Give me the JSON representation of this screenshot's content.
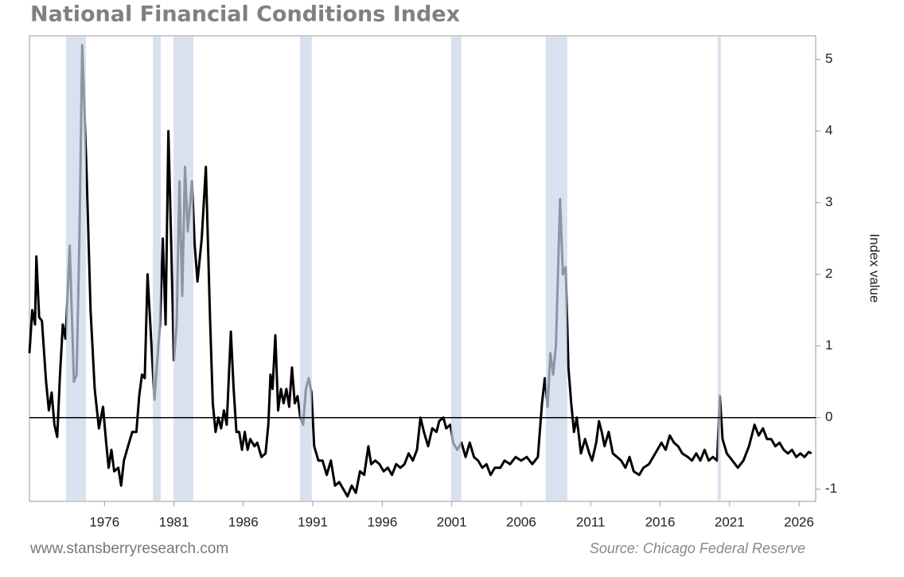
{
  "chart_data": {
    "type": "line",
    "title": "National Financial Conditions Index",
    "y_label": "Index value",
    "watermark": "www.stansberryresearch.com",
    "source": "Source: Chicago Federal Reserve",
    "color": "#000000",
    "shade_color": "#c9d4e8",
    "hline": 0,
    "xlim": [
      1970.6,
      2027.2
    ],
    "xticks": [
      1976,
      1981,
      1986,
      1991,
      1996,
      2001,
      2006,
      2011,
      2016,
      2021,
      2026
    ],
    "ylim": [
      -1.17,
      5.33
    ],
    "yticks": [
      -1,
      0,
      1,
      2,
      3,
      4,
      5
    ],
    "shaded_regions": [
      [
        1973.23,
        1974.67
      ],
      [
        1979.48,
        1980.05
      ],
      [
        1980.97,
        1982.4
      ],
      [
        1990.07,
        1990.93
      ],
      [
        2000.95,
        2001.7
      ],
      [
        2007.77,
        2009.32
      ],
      [
        2020.14,
        2020.37
      ]
    ],
    "x": [
      1970.6,
      1970.8,
      1971.0,
      1971.1,
      1971.3,
      1971.5,
      1971.8,
      1972.0,
      1972.2,
      1972.4,
      1972.6,
      1972.8,
      1973.0,
      1973.2,
      1973.5,
      1973.8,
      1974.0,
      1974.2,
      1974.4,
      1974.7,
      1975.0,
      1975.3,
      1975.6,
      1975.9,
      1976.1,
      1976.3,
      1976.5,
      1976.7,
      1977.0,
      1977.2,
      1977.4,
      1977.7,
      1978.0,
      1978.3,
      1978.5,
      1978.7,
      1978.9,
      1979.1,
      1979.3,
      1979.6,
      1979.8,
      1980.0,
      1980.2,
      1980.4,
      1980.6,
      1980.8,
      1981.0,
      1981.2,
      1981.4,
      1981.6,
      1981.8,
      1982.0,
      1982.3,
      1982.5,
      1982.7,
      1983.0,
      1983.3,
      1983.6,
      1983.8,
      1984.0,
      1984.2,
      1984.4,
      1984.6,
      1984.8,
      1985.1,
      1985.3,
      1985.5,
      1985.7,
      1985.9,
      1986.1,
      1986.3,
      1986.5,
      1986.8,
      1987.0,
      1987.3,
      1987.6,
      1987.8,
      1987.95,
      1988.1,
      1988.3,
      1988.5,
      1988.7,
      1988.9,
      1989.1,
      1989.3,
      1989.5,
      1989.7,
      1989.9,
      1990.1,
      1990.3,
      1990.5,
      1990.7,
      1990.9,
      1991.1,
      1991.4,
      1991.7,
      1992.0,
      1992.3,
      1992.6,
      1992.9,
      1993.2,
      1993.5,
      1993.8,
      1994.1,
      1994.4,
      1994.7,
      1995.0,
      1995.2,
      1995.5,
      1995.8,
      1996.1,
      1996.4,
      1996.7,
      1997.0,
      1997.3,
      1997.6,
      1997.9,
      1998.2,
      1998.5,
      1998.75,
      1999.0,
      1999.3,
      1999.6,
      1999.9,
      2000.1,
      2000.4,
      2000.6,
      2000.9,
      2001.1,
      2001.4,
      2001.7,
      2002.0,
      2002.3,
      2002.6,
      2002.9,
      2003.2,
      2003.5,
      2003.8,
      2004.1,
      2004.5,
      2004.8,
      2005.2,
      2005.6,
      2006.0,
      2006.4,
      2006.8,
      2007.2,
      2007.5,
      2007.7,
      2007.9,
      2008.1,
      2008.3,
      2008.5,
      2008.8,
      2009.0,
      2009.2,
      2009.4,
      2009.6,
      2009.8,
      2010.0,
      2010.3,
      2010.6,
      2010.9,
      2011.1,
      2011.4,
      2011.6,
      2011.8,
      2012.0,
      2012.3,
      2012.6,
      2012.9,
      2013.2,
      2013.5,
      2013.8,
      2014.1,
      2014.5,
      2014.8,
      2015.2,
      2015.5,
      2015.8,
      2016.1,
      2016.4,
      2016.7,
      2017.0,
      2017.3,
      2017.6,
      2018.0,
      2018.3,
      2018.6,
      2018.9,
      2019.2,
      2019.5,
      2019.8,
      2020.1,
      2020.3,
      2020.5,
      2020.8,
      2021.2,
      2021.6,
      2022.0,
      2022.4,
      2022.8,
      2023.1,
      2023.4,
      2023.7,
      2024.0,
      2024.3,
      2024.6,
      2024.9,
      2025.2,
      2025.5,
      2025.8,
      2026.1,
      2026.4,
      2026.7,
      2026.9
    ],
    "values": [
      0.9,
      1.5,
      1.3,
      2.25,
      1.4,
      1.35,
      0.5,
      0.1,
      0.35,
      -0.1,
      -0.27,
      0.6,
      1.3,
      1.1,
      2.4,
      0.5,
      0.6,
      2.5,
      5.2,
      3.5,
      1.5,
      0.4,
      -0.15,
      0.15,
      -0.3,
      -0.7,
      -0.45,
      -0.75,
      -0.7,
      -0.95,
      -0.6,
      -0.4,
      -0.2,
      -0.2,
      0.3,
      0.6,
      0.55,
      2.0,
      1.3,
      0.25,
      0.8,
      1.3,
      2.5,
      1.3,
      4.0,
      2.5,
      0.8,
      1.3,
      3.3,
      1.7,
      3.5,
      2.6,
      3.3,
      2.4,
      1.9,
      2.5,
      3.5,
      1.4,
      0.2,
      -0.2,
      0.0,
      -0.15,
      0.1,
      -0.1,
      1.2,
      0.4,
      -0.2,
      -0.2,
      -0.45,
      -0.2,
      -0.45,
      -0.3,
      -0.4,
      -0.35,
      -0.55,
      -0.5,
      -0.1,
      0.6,
      0.4,
      1.15,
      0.1,
      0.4,
      0.2,
      0.4,
      0.15,
      0.7,
      0.2,
      0.3,
      0.0,
      -0.1,
      0.4,
      0.55,
      0.35,
      -0.4,
      -0.6,
      -0.6,
      -0.8,
      -0.6,
      -0.95,
      -0.9,
      -1.0,
      -1.1,
      -0.95,
      -1.05,
      -0.75,
      -0.8,
      -0.4,
      -0.65,
      -0.6,
      -0.65,
      -0.75,
      -0.7,
      -0.8,
      -0.65,
      -0.7,
      -0.65,
      -0.5,
      -0.6,
      -0.45,
      0.0,
      -0.2,
      -0.4,
      -0.15,
      -0.2,
      -0.05,
      0.0,
      -0.15,
      -0.1,
      -0.35,
      -0.45,
      -0.35,
      -0.55,
      -0.35,
      -0.55,
      -0.6,
      -0.7,
      -0.65,
      -0.8,
      -0.7,
      -0.7,
      -0.6,
      -0.65,
      -0.55,
      -0.6,
      -0.55,
      -0.65,
      -0.55,
      0.2,
      0.55,
      0.15,
      0.9,
      0.6,
      1.0,
      3.05,
      2.0,
      2.1,
      0.7,
      0.2,
      -0.2,
      0.0,
      -0.5,
      -0.3,
      -0.5,
      -0.6,
      -0.35,
      -0.05,
      -0.2,
      -0.4,
      -0.2,
      -0.5,
      -0.55,
      -0.6,
      -0.7,
      -0.55,
      -0.75,
      -0.8,
      -0.7,
      -0.65,
      -0.55,
      -0.45,
      -0.35,
      -0.45,
      -0.25,
      -0.35,
      -0.4,
      -0.5,
      -0.55,
      -0.6,
      -0.5,
      -0.6,
      -0.45,
      -0.6,
      -0.55,
      -0.6,
      0.3,
      -0.3,
      -0.5,
      -0.6,
      -0.7,
      -0.6,
      -0.4,
      -0.1,
      -0.25,
      -0.15,
      -0.3,
      -0.3,
      -0.4,
      -0.35,
      -0.45,
      -0.5,
      -0.45,
      -0.55,
      -0.5,
      -0.55,
      -0.48,
      -0.5
    ]
  }
}
